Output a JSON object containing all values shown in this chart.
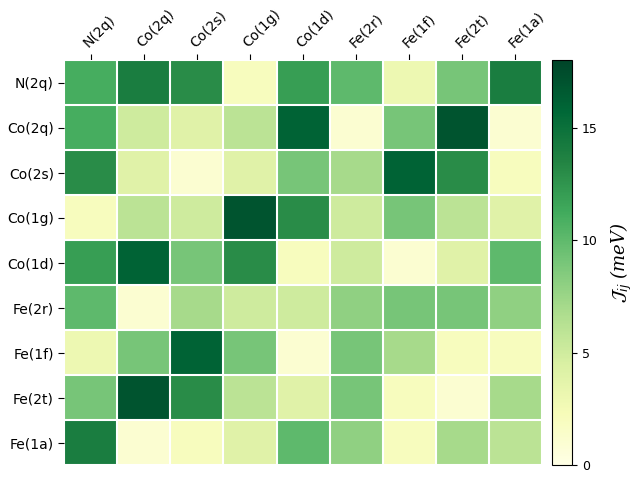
{
  "labels": [
    "N(2q)",
    "Co(2q)",
    "Co(2s)",
    "Co(1g)",
    "Co(1d)",
    "Fe(2r)",
    "Fe(1f)",
    "Fe(2t)",
    "Fe(1a)"
  ],
  "matrix": [
    [
      11,
      14,
      13,
      2,
      12,
      10,
      3,
      9,
      14
    ],
    [
      11,
      5,
      4,
      6,
      16,
      1,
      9,
      17,
      1
    ],
    [
      13,
      4,
      1,
      4,
      9,
      7,
      16,
      13,
      2
    ],
    [
      2,
      6,
      5,
      17,
      13,
      5,
      9,
      6,
      4
    ],
    [
      12,
      16,
      9,
      13,
      2,
      5,
      1,
      4,
      10
    ],
    [
      10,
      1,
      7,
      5,
      5,
      8,
      9,
      9,
      8
    ],
    [
      3,
      9,
      16,
      9,
      1,
      9,
      7,
      2,
      2
    ],
    [
      9,
      17,
      13,
      6,
      4,
      9,
      2,
      1,
      7
    ],
    [
      14,
      1,
      2,
      4,
      10,
      8,
      2,
      7,
      6
    ]
  ],
  "vmin": 0,
  "vmax": 18,
  "cmap": "YlGn",
  "colorbar_label": "$\\mathcal{J}_{ij}$ (meV)",
  "colorbar_ticks": [
    0,
    5,
    10,
    15
  ],
  "figsize": [
    6.4,
    4.8
  ],
  "dpi": 100
}
